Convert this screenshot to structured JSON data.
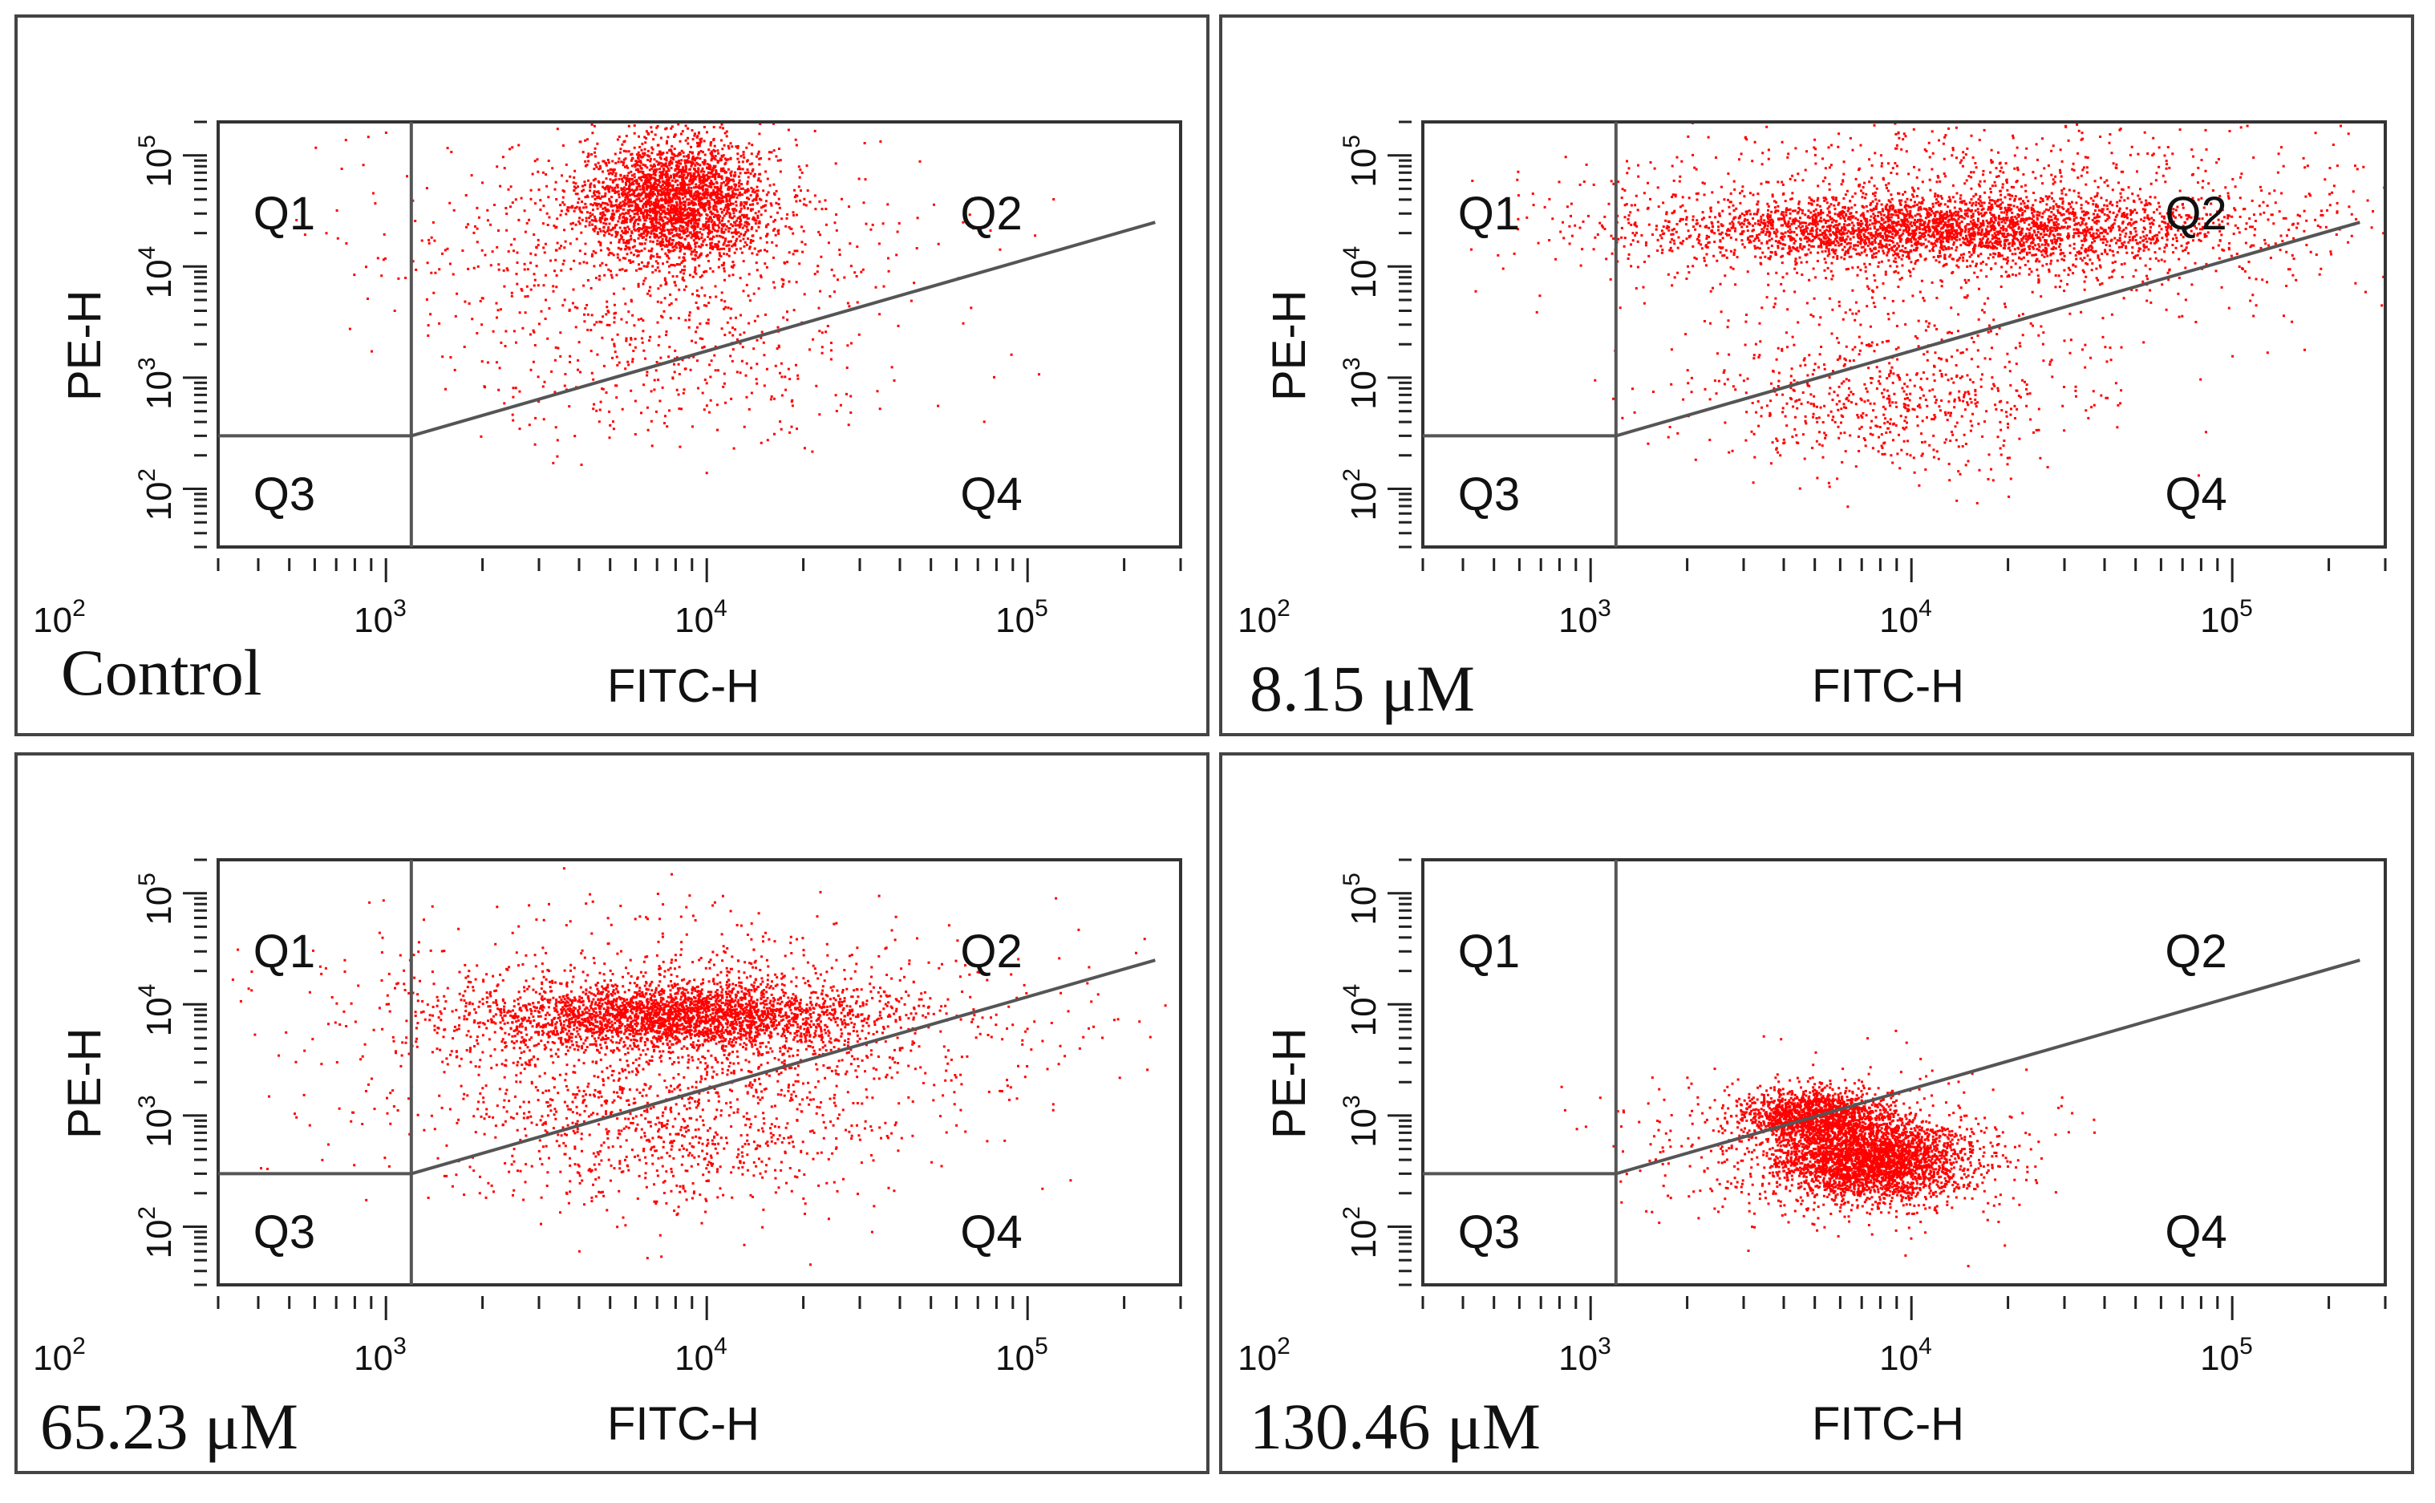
{
  "figure": {
    "panels": [
      {
        "condition": "Control",
        "x_label": "FITC-H",
        "y_label": "PE-H"
      },
      {
        "condition": "8.15 μM",
        "x_label": "FITC-H",
        "y_label": "PE-H"
      },
      {
        "condition": "65.23 μM",
        "x_label": "FITC-H",
        "y_label": "PE-H"
      },
      {
        "condition": "130.46 μM",
        "x_label": "FITC-H",
        "y_label": "PE-H"
      }
    ]
  },
  "colors": {
    "points": "#ff0000",
    "gate": "#555555",
    "frame": "#333333"
  },
  "chart_data": [
    {
      "type": "scatter",
      "title": "Control",
      "xlabel": "FITC-H",
      "ylabel": "PE-H",
      "xscale": "log",
      "yscale": "log",
      "xlim": [
        300,
        300000
      ],
      "ylim": [
        30,
        200000
      ],
      "x_ticks": [
        "10^2",
        "10^3",
        "10^4",
        "10^5"
      ],
      "y_ticks": [
        "10^2",
        "10^3",
        "10^4",
        "10^5"
      ],
      "quadrants": [
        "Q1",
        "Q2",
        "Q3",
        "Q4"
      ],
      "gate": {
        "x_threshold": 1200,
        "y_threshold": 300,
        "q2_q4_boundary": [
          [
            1200,
            300
          ],
          [
            250000,
            25000
          ]
        ]
      },
      "populations": [
        {
          "quadrant": "Q2",
          "center": [
            8000,
            40000
          ],
          "spread": [
            0.15,
            0.28
          ],
          "density": "very high"
        },
        {
          "quadrant": "Q2",
          "center": [
            6000,
            15000
          ],
          "spread": [
            0.45,
            0.5
          ],
          "density": "medium"
        },
        {
          "quadrant": "Q4",
          "center": [
            8000,
            1200
          ],
          "spread": [
            0.3,
            0.35
          ],
          "density": "low"
        }
      ]
    },
    {
      "type": "scatter",
      "title": "8.15 μM",
      "xlabel": "FITC-H",
      "ylabel": "PE-H",
      "xscale": "log",
      "yscale": "log",
      "xlim": [
        300,
        300000
      ],
      "ylim": [
        30,
        200000
      ],
      "x_ticks": [
        "10^2",
        "10^3",
        "10^4",
        "10^5"
      ],
      "y_ticks": [
        "10^2",
        "10^3",
        "10^4",
        "10^5"
      ],
      "quadrants": [
        "Q1",
        "Q2",
        "Q3",
        "Q4"
      ],
      "gate": {
        "x_threshold": 1200,
        "y_threshold": 300,
        "q2_q4_boundary": [
          [
            1200,
            300
          ],
          [
            250000,
            25000
          ]
        ]
      },
      "populations": [
        {
          "quadrant": "Q2",
          "center": [
            12000,
            22000
          ],
          "spread": [
            0.45,
            0.15
          ],
          "density": "very high"
        },
        {
          "quadrant": "Q2",
          "center": [
            15000,
            30000
          ],
          "spread": [
            0.6,
            0.45
          ],
          "density": "high"
        },
        {
          "quadrant": "Q4",
          "center": [
            9000,
            700
          ],
          "spread": [
            0.3,
            0.35
          ],
          "density": "medium"
        }
      ]
    },
    {
      "type": "scatter",
      "title": "65.23 μM",
      "xlabel": "FITC-H",
      "ylabel": "PE-H",
      "xscale": "log",
      "yscale": "log",
      "xlim": [
        300,
        300000
      ],
      "ylim": [
        30,
        200000
      ],
      "x_ticks": [
        "10^2",
        "10^3",
        "10^4",
        "10^5"
      ],
      "y_ticks": [
        "10^2",
        "10^3",
        "10^4",
        "10^5"
      ],
      "quadrants": [
        "Q1",
        "Q2",
        "Q3",
        "Q4"
      ],
      "gate": {
        "x_threshold": 1200,
        "y_threshold": 300,
        "q2_q4_boundary": [
          [
            1200,
            300
          ],
          [
            250000,
            25000
          ]
        ]
      },
      "populations": [
        {
          "quadrant": "Q2",
          "center": [
            8000,
            8000
          ],
          "spread": [
            0.3,
            0.15
          ],
          "density": "very high"
        },
        {
          "quadrant": "Q2",
          "center": [
            9000,
            6000
          ],
          "spread": [
            0.55,
            0.5
          ],
          "density": "high"
        },
        {
          "quadrant": "Q4",
          "center": [
            7000,
            600
          ],
          "spread": [
            0.35,
            0.35
          ],
          "density": "medium"
        }
      ]
    },
    {
      "type": "scatter",
      "title": "130.46 μM",
      "xlabel": "FITC-H",
      "ylabel": "PE-H",
      "xscale": "log",
      "yscale": "log",
      "xlim": [
        300,
        300000
      ],
      "ylim": [
        30,
        200000
      ],
      "x_ticks": [
        "10^2",
        "10^3",
        "10^4",
        "10^5"
      ],
      "y_ticks": [
        "10^2",
        "10^3",
        "10^4",
        "10^5"
      ],
      "quadrants": [
        "Q1",
        "Q2",
        "Q3",
        "Q4"
      ],
      "gate": {
        "x_threshold": 1200,
        "y_threshold": 300,
        "q2_q4_boundary": [
          [
            1200,
            300
          ],
          [
            250000,
            25000
          ]
        ]
      },
      "populations": [
        {
          "quadrant": "Q4",
          "center": [
            7500,
            400
          ],
          "spread": [
            0.15,
            0.18
          ],
          "density": "very high"
        },
        {
          "quadrant": "Q2",
          "center": [
            5000,
            1000
          ],
          "spread": [
            0.12,
            0.12
          ],
          "density": "high"
        },
        {
          "quadrant": "Q4",
          "center": [
            6000,
            500
          ],
          "spread": [
            0.3,
            0.35
          ],
          "density": "medium"
        }
      ]
    }
  ]
}
